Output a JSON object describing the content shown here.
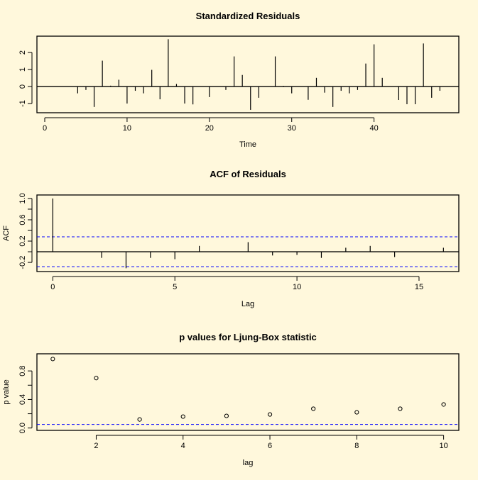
{
  "colors": {
    "background": "#fff8dc",
    "bound_line": "#0000ff",
    "mark": "#000000"
  },
  "chart_data": [
    {
      "type": "bar",
      "title": "Standardized Residuals",
      "xlabel": "Time",
      "ylabel": "",
      "xlim": [
        -0.95,
        50.3
      ],
      "ylim": [
        -1.54,
        2.96
      ],
      "xticks": [
        0,
        10,
        20,
        30,
        40
      ],
      "yticks": [
        -1,
        0,
        1,
        2
      ],
      "ytick_labels": [
        "-1",
        "0",
        "1",
        "2"
      ],
      "hline": 0,
      "x": [
        1,
        2,
        3,
        4,
        5,
        6,
        7,
        8,
        9,
        10,
        11,
        12,
        13,
        14,
        15,
        16,
        17,
        18,
        19,
        20,
        21,
        22,
        23,
        24,
        25,
        26,
        27,
        28,
        29,
        30,
        31,
        32,
        33,
        34,
        35,
        36,
        37,
        38,
        39,
        40,
        41,
        42,
        43,
        44,
        45,
        46,
        47,
        48
      ],
      "values": [
        0,
        0,
        0,
        -0.4,
        -0.2,
        -1.2,
        1.52,
        0.05,
        0.4,
        -1.0,
        -0.25,
        -0.4,
        0.98,
        -0.75,
        2.78,
        0.15,
        -1.0,
        -1.05,
        0,
        -0.62,
        0,
        -0.2,
        1.77,
        0.68,
        -1.37,
        -0.66,
        0,
        1.77,
        0.04,
        -0.4,
        0,
        -0.78,
        0.51,
        -0.36,
        -1.2,
        -0.25,
        -0.4,
        -0.2,
        1.35,
        2.48,
        0.51,
        0,
        -0.79,
        -1.04,
        -1.04,
        2.53,
        -0.66,
        -0.25
      ]
    },
    {
      "type": "bar",
      "title": "ACF of Residuals",
      "xlabel": "Lag",
      "ylabel": "ACF",
      "xlim": [
        -0.65,
        16.63
      ],
      "ylim": [
        -0.372,
        1.066
      ],
      "xticks": [
        0,
        5,
        10,
        15
      ],
      "yticks": [
        -0.2,
        0,
        0.2,
        0.4,
        0.6,
        0.8,
        1.0
      ],
      "ytick_labels": [
        "-0.2",
        "",
        "0.2",
        "",
        "0.6",
        "",
        "1.0"
      ],
      "hline": 0,
      "confidence_bounds": [
        0.28,
        -0.28
      ],
      "x": [
        0,
        1,
        2,
        3,
        4,
        5,
        6,
        7,
        8,
        9,
        10,
        11,
        12,
        13,
        14,
        15,
        16
      ],
      "values": [
        1.0,
        0,
        -0.115,
        -0.31,
        -0.115,
        -0.14,
        0.11,
        0,
        0.18,
        -0.07,
        -0.06,
        -0.115,
        0.075,
        0.11,
        -0.1,
        0,
        0.075
      ]
    },
    {
      "type": "scatter",
      "title": "p values for Ljung-Box statistic",
      "xlabel": "lag",
      "ylabel": "p value",
      "xlim": [
        0.635,
        10.35
      ],
      "ylim": [
        -0.033,
        1.04
      ],
      "xticks": [
        2,
        4,
        6,
        8,
        10
      ],
      "yticks": [
        0,
        0.2,
        0.4,
        0.6,
        0.8
      ],
      "ytick_labels": [
        "0.0",
        "",
        "0.4",
        "",
        "0.8"
      ],
      "threshold": 0.05,
      "x": [
        1,
        2,
        3,
        4,
        5,
        6,
        7,
        8,
        9,
        10
      ],
      "values": [
        0.967,
        0.7,
        0.12,
        0.16,
        0.17,
        0.19,
        0.27,
        0.22,
        0.27,
        0.33
      ]
    }
  ]
}
